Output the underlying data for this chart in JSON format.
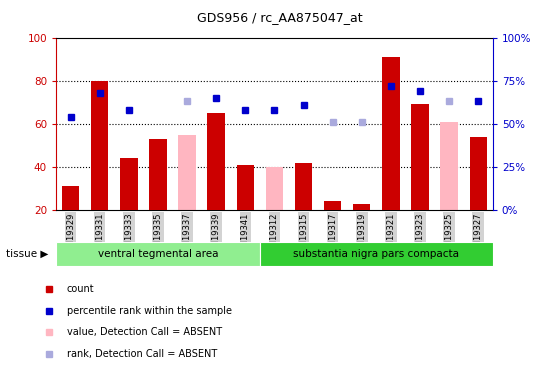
{
  "title": "GDS956 / rc_AA875047_at",
  "samples": [
    "GSM19329",
    "GSM19331",
    "GSM19333",
    "GSM19335",
    "GSM19337",
    "GSM19339",
    "GSM19341",
    "GSM19312",
    "GSM19315",
    "GSM19317",
    "GSM19319",
    "GSM19321",
    "GSM19323",
    "GSM19325",
    "GSM19327"
  ],
  "group1_label": "ventral tegmental area",
  "group2_label": "substantia nigra pars compacta",
  "group1_count": 7,
  "group2_count": 8,
  "count_values": [
    31,
    80,
    44,
    53,
    null,
    65,
    41,
    null,
    42,
    24,
    23,
    91,
    69,
    null,
    54
  ],
  "rank_values": [
    54,
    68,
    58,
    null,
    null,
    65,
    58,
    58,
    61,
    null,
    null,
    72,
    69,
    null,
    63
  ],
  "absent_value": [
    null,
    null,
    null,
    null,
    55,
    null,
    null,
    40,
    null,
    null,
    null,
    null,
    null,
    61,
    null
  ],
  "absent_rank": [
    null,
    null,
    null,
    null,
    63,
    null,
    null,
    null,
    null,
    51,
    51,
    null,
    null,
    63,
    null
  ],
  "count_color": "#CC0000",
  "rank_color": "#0000CC",
  "absent_val_color": "#FFB6C1",
  "absent_rank_color": "#AAAADD",
  "ylim": [
    20,
    100
  ],
  "y2lim": [
    0,
    100
  ],
  "yticks": [
    20,
    40,
    60,
    80,
    100
  ],
  "y2ticks": [
    0,
    25,
    50,
    75,
    100
  ],
  "y2ticklabels": [
    "0%",
    "25%",
    "50%",
    "75%",
    "100%"
  ],
  "grid_dotted_at": [
    40,
    60,
    80
  ],
  "bg_group1": "#90EE90",
  "bg_group2": "#32CD32",
  "tissue_label": "tissue ▶",
  "legend_items": [
    "count",
    "percentile rank within the sample",
    "value, Detection Call = ABSENT",
    "rank, Detection Call = ABSENT"
  ]
}
